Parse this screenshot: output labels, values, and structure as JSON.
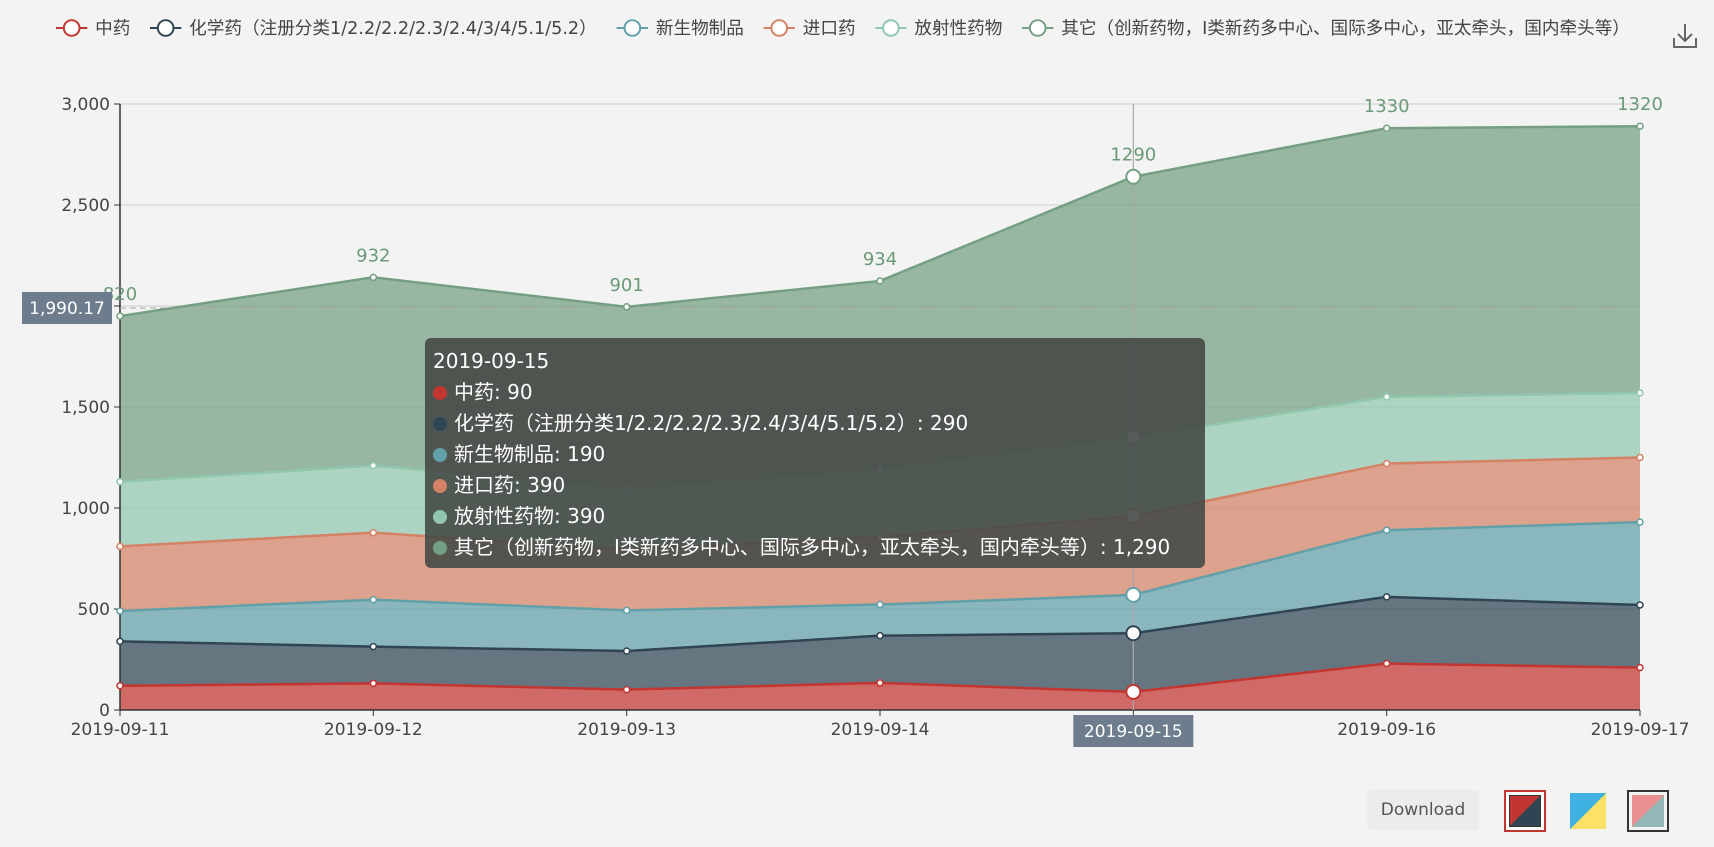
{
  "chart_data": {
    "type": "area",
    "stacked": true,
    "title": "",
    "xlabel": "",
    "ylabel": "",
    "categories": [
      "2019-09-11",
      "2019-09-12",
      "2019-09-13",
      "2019-09-14",
      "2019-09-15",
      "2019-09-16",
      "2019-09-17"
    ],
    "ylim": [
      0,
      3000
    ],
    "y_ticks": [
      "0",
      "500",
      "1,000",
      "1,500",
      "2,000",
      "2,500",
      "3,000"
    ],
    "y_tick_values": [
      0,
      500,
      1000,
      1500,
      2000,
      2500,
      3000
    ],
    "grid": true,
    "legend_position": "top",
    "series": [
      {
        "name": "中药",
        "color": "#c23531",
        "values": [
          120,
          132,
          101,
          134,
          90,
          230,
          210
        ]
      },
      {
        "name": "化学药（注册分类1/2.2/2.2/2.3/2.4/3/4/5.1/5.2）",
        "color": "#2f4554",
        "values": [
          220,
          182,
          191,
          234,
          290,
          330,
          310
        ]
      },
      {
        "name": "新生物制品",
        "color": "#61a0a8",
        "values": [
          150,
          232,
          201,
          154,
          190,
          330,
          410
        ]
      },
      {
        "name": "进口药",
        "color": "#d48265",
        "values": [
          320,
          332,
          301,
          334,
          390,
          330,
          320
        ]
      },
      {
        "name": "放射性药物",
        "color": "#91c7ae",
        "values": [
          320,
          332,
          301,
          334,
          390,
          330,
          320
        ]
      },
      {
        "name": "其它（创新药物，I类新药多中心、国际多中心，亚太牵头，国内牵头等）",
        "color": "#749f83",
        "values": [
          820,
          932,
          901,
          934,
          1290,
          1330,
          1320
        ],
        "labels": [
          "820",
          "932",
          "901",
          "934",
          "1290",
          "1330",
          "1320"
        ]
      }
    ],
    "axis_pointer": {
      "y_label": "1,990.17",
      "y_value": 1990.17,
      "x_label": "2019-09-15",
      "x_index": 4
    }
  },
  "tooltip": {
    "title": "2019-09-15",
    "rows": [
      {
        "text": "中药: 90",
        "color": "#c23531"
      },
      {
        "text": "化学药（注册分类1/2.2/2.2/2.3/2.4/3/4/5.1/5.2）: 290",
        "color": "#2f4554"
      },
      {
        "text": "新生物制品: 190",
        "color": "#61a0a8"
      },
      {
        "text": "进口药: 390",
        "color": "#d48265"
      },
      {
        "text": "放射性药物: 390",
        "color": "#91c7ae"
      },
      {
        "text": "其它（创新药物，I类新药多中心、国际多中心，亚太牵头，国内牵头等）: 1,290",
        "color": "#749f83"
      }
    ]
  },
  "toolbar": {
    "download_label": "Download",
    "save_icon": "download-icon"
  }
}
